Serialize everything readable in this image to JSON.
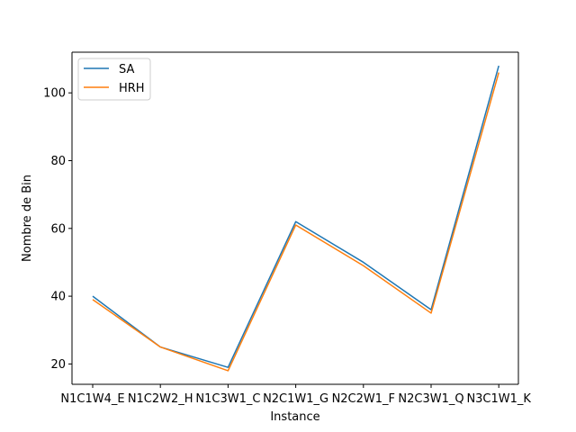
{
  "chart_data": {
    "type": "line",
    "categories": [
      "N1C1W4_E",
      "N1C2W2_H",
      "N1C3W1_C",
      "N2C1W1_G",
      "N2C2W1_F",
      "N2C3W1_Q",
      "N3C1W1_K"
    ],
    "series": [
      {
        "name": "SA",
        "values": [
          40,
          25,
          19,
          62,
          50,
          36,
          108
        ],
        "color": "#1f77b4"
      },
      {
        "name": "HRH",
        "values": [
          39,
          25,
          18,
          61,
          49,
          35,
          106
        ],
        "color": "#ff7f0e"
      }
    ],
    "xlabel": "Instance",
    "ylabel": "Nombre de Bin",
    "ylim": [
      14,
      112
    ],
    "yticks": [
      20,
      40,
      60,
      80,
      100
    ],
    "grid": false,
    "legend_position": "top-left"
  }
}
